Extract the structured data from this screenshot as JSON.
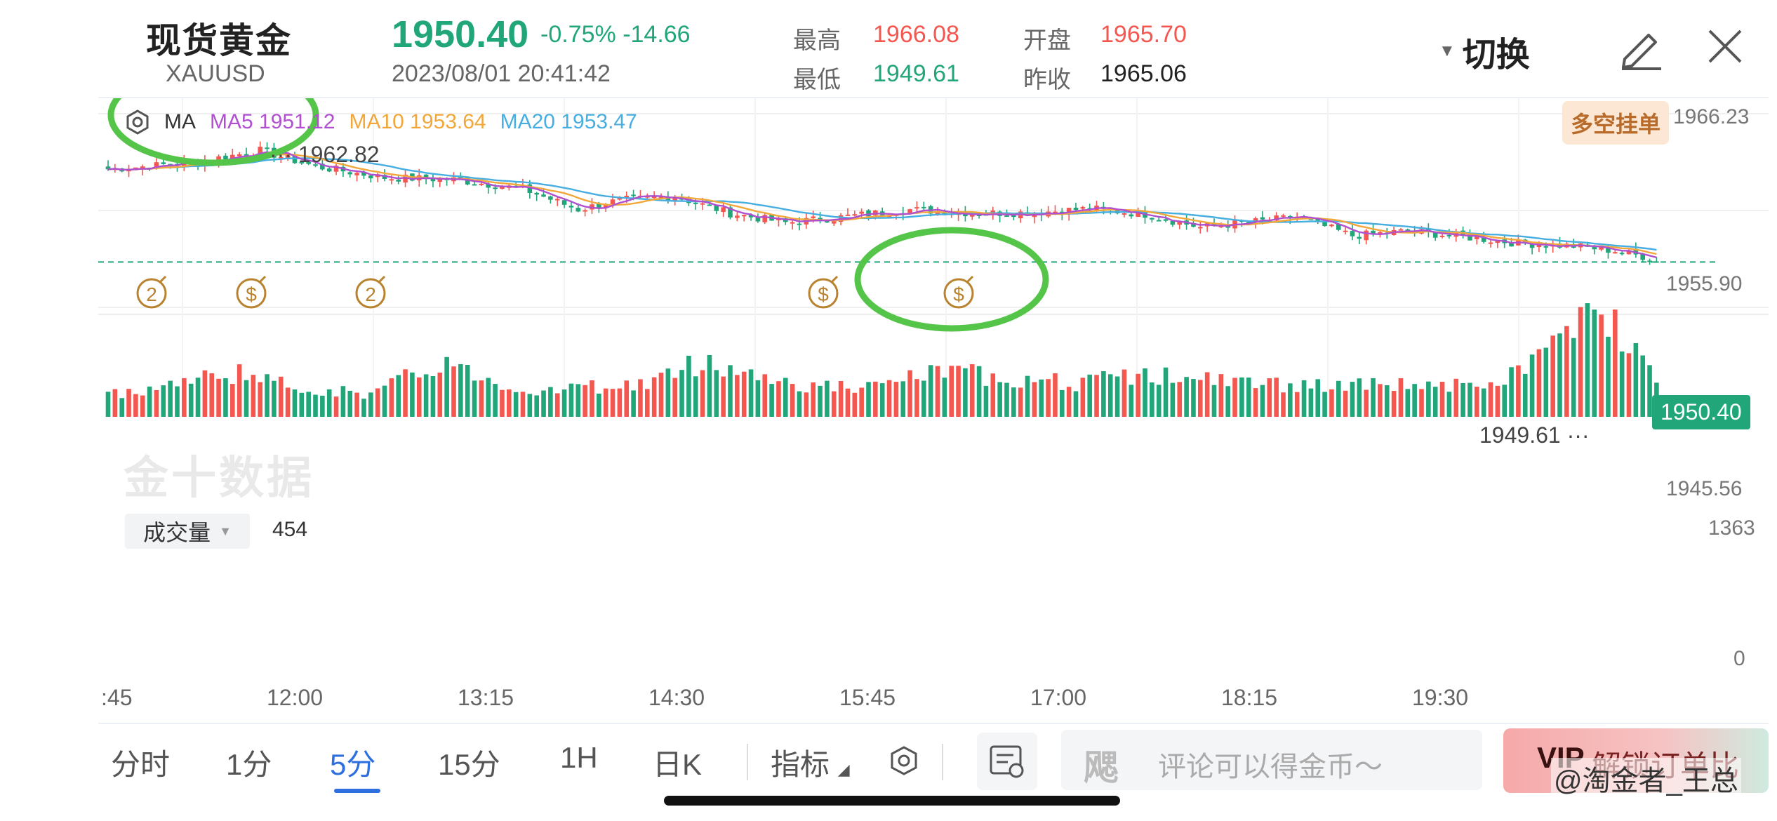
{
  "header": {
    "name": "现货黄金",
    "code": "XAUUSD",
    "price": "1950.40",
    "change_pct": "-0.75%",
    "change_abs": "-14.66",
    "datetime": "2023/08/01 20:41:42",
    "high_label": "最高",
    "high_value": "1966.08",
    "low_label": "最低",
    "low_value": "1949.61",
    "open_label": "开盘",
    "open_value": "1965.70",
    "prevclose_label": "昨收",
    "prevclose_value": "1965.06",
    "switch_label": "切换"
  },
  "legend": {
    "ma_label": "MA",
    "ma5": "MA5 1951.12",
    "ma10": "MA10 1953.64",
    "ma20": "MA20 1953.47"
  },
  "badge_label": "多空挂单",
  "axis": {
    "y_top": "1966.23",
    "y_mid": "1955.90",
    "y_low": "1945.56",
    "current_price": "1950.40",
    "max_label": "1962.82",
    "min_label": "1949.61",
    "vol_max": "1363",
    "vol_min": "0",
    "x_labels": [
      ":45",
      "12:00",
      "13:15",
      "14:30",
      "15:45",
      "17:00",
      "18:15",
      "19:30"
    ]
  },
  "volume": {
    "selector_label": "成交量",
    "current": "454"
  },
  "watermark": "金十数据",
  "event_icons": [
    "2",
    "$",
    "2",
    "$",
    "$"
  ],
  "toolbar": {
    "tabs": [
      "分时",
      "1分",
      "5分",
      "15分",
      "1H",
      "日K"
    ],
    "active_tab": "5分",
    "indicator_label": "指标",
    "comment_placeholder": "评论可以得金币～",
    "comment_logo": "飔",
    "unlock_label": "解锁订单比",
    "unlock_vip": "VIP"
  },
  "signature": "@淘金者_王总",
  "colors": {
    "up": "#f4574f",
    "down": "#21a67a",
    "ma5": "#b04fd0",
    "ma10": "#f2a73b",
    "ma20": "#46aee0",
    "annotation": "#55c549",
    "event": "#b8822e"
  },
  "chart_data": {
    "type": "candlestick",
    "interval": "5分",
    "ylim": [
      1945.56,
      1966.23
    ],
    "highest": 1962.82,
    "lowest": 1949.61,
    "last": 1950.4,
    "ma_current": {
      "ma5": 1951.12,
      "ma10": 1953.64,
      "ma20": 1953.47
    },
    "volume_ylim": [
      0,
      1363
    ],
    "volume_current": 454,
    "close_anchors": [
      [
        0,
        1960.3
      ],
      [
        12,
        1961.0
      ],
      [
        22,
        1962.3
      ],
      [
        30,
        1960.6
      ],
      [
        40,
        1959.4
      ],
      [
        50,
        1959.2
      ],
      [
        60,
        1958.2
      ],
      [
        68,
        1956.0
      ],
      [
        74,
        1957.0
      ],
      [
        82,
        1957.4
      ],
      [
        90,
        1955.6
      ],
      [
        98,
        1954.6
      ],
      [
        106,
        1955.2
      ],
      [
        116,
        1956.0
      ],
      [
        126,
        1955.6
      ],
      [
        134,
        1955.7
      ],
      [
        142,
        1956.1
      ],
      [
        150,
        1955.5
      ],
      [
        158,
        1954.1
      ],
      [
        166,
        1954.7
      ],
      [
        172,
        1955.2
      ],
      [
        180,
        1953.2
      ],
      [
        188,
        1953.7
      ],
      [
        196,
        1953.1
      ],
      [
        204,
        1952.4
      ],
      [
        212,
        1952.1
      ],
      [
        218,
        1951.6
      ],
      [
        224,
        1950.7
      ]
    ],
    "volume_anchors": [
      [
        0,
        300
      ],
      [
        10,
        450
      ],
      [
        19,
        600
      ],
      [
        26,
        400
      ],
      [
        38,
        300
      ],
      [
        48,
        720
      ],
      [
        60,
        350
      ],
      [
        78,
        440
      ],
      [
        86,
        740
      ],
      [
        100,
        420
      ],
      [
        110,
        380
      ],
      [
        120,
        600
      ],
      [
        140,
        450
      ],
      [
        150,
        560
      ],
      [
        162,
        470
      ],
      [
        176,
        400
      ],
      [
        190,
        440
      ],
      [
        200,
        380
      ],
      [
        208,
        900
      ],
      [
        215,
        1363
      ],
      [
        221,
        1050
      ],
      [
        224,
        454
      ]
    ]
  }
}
